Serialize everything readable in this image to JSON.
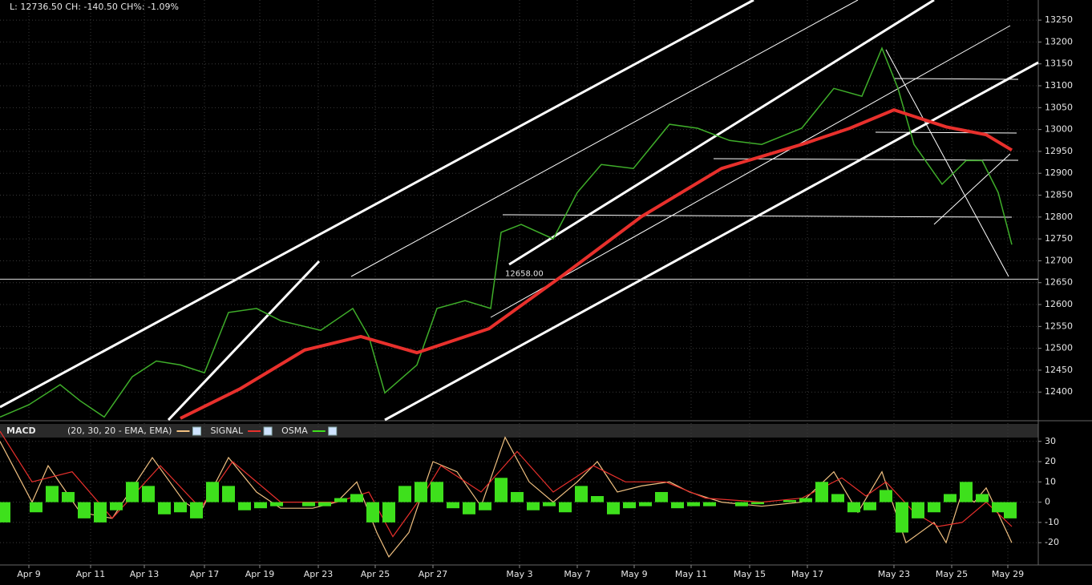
{
  "chart_data": [
    {
      "type": "line",
      "title": "L: 12736.50 CH: -140.50 CH%: -1.09%",
      "xlim": [
        0,
        129.5
      ],
      "ylim": [
        12340,
        13296
      ],
      "grid": true,
      "yticks": [
        12400,
        12450,
        12500,
        12550,
        12600,
        12650,
        12700,
        12750,
        12800,
        12850,
        12900,
        12950,
        13000,
        13050,
        13100,
        13150,
        13200,
        13250
      ],
      "series": [
        {
          "color": "#3fae2a",
          "x": [
            0,
            3.6,
            7.5,
            10,
            13,
            16.5,
            19.5,
            22.5,
            25.5,
            28.5,
            32,
            35,
            40,
            44,
            46,
            48,
            52,
            54.5,
            58,
            61.2,
            62.5,
            65,
            69,
            72,
            75,
            79,
            83.5,
            87,
            91,
            95,
            100,
            104,
            107.5,
            110,
            112,
            114,
            117.5,
            120.5,
            122.5,
            124.5,
            126.2
          ],
          "values": [
            12343,
            12371,
            12417,
            12380,
            12343,
            12435,
            12471,
            12462,
            12444,
            12582,
            12591,
            12563,
            12541,
            12591,
            12527,
            12398,
            12462,
            12591,
            12609,
            12591,
            12765,
            12783,
            12750,
            12856,
            12920,
            12911,
            13012,
            13003,
            12975,
            12966,
            13003,
            13094,
            13076,
            13186,
            13094,
            12966,
            12875,
            12929,
            12929,
            12856,
            12737
          ]
        },
        {
          "color": "#e8302c",
          "x": [
            22.5,
            30,
            38,
            45,
            52,
            61,
            70,
            80,
            90,
            100,
            106,
            111.5,
            118,
            123,
            126.2
          ],
          "values": [
            12340,
            12408,
            12496,
            12527,
            12490,
            12545,
            12664,
            12801,
            12911,
            12966,
            13003,
            13045,
            13006,
            12988,
            12953
          ]
        }
      ],
      "annotations": [
        {
          "text": "12658.00",
          "value": 12658
        }
      ]
    },
    {
      "type": "line",
      "title": "MACD",
      "xlim": [
        0,
        129.5
      ],
      "ylim": [
        -31,
        39
      ],
      "grid": true,
      "yticks": [
        -20,
        -10,
        0,
        10,
        20,
        30
      ],
      "xticks": [
        {
          "value": 3.6,
          "label": "Apr 9"
        },
        {
          "value": 11.3,
          "label": "Apr 11"
        },
        {
          "value": 18,
          "label": "Apr 13"
        },
        {
          "value": 25.5,
          "label": "Apr 17"
        },
        {
          "value": 32.4,
          "label": "Apr 19"
        },
        {
          "value": 39.7,
          "label": "Apr 23"
        },
        {
          "value": 46.8,
          "label": "Apr 25"
        },
        {
          "value": 54,
          "label": "Apr 27"
        },
        {
          "value": 64.8,
          "label": "May 3"
        },
        {
          "value": 72,
          "label": "May 7"
        },
        {
          "value": 79.1,
          "label": "May 9"
        },
        {
          "value": 86.2,
          "label": "May 11"
        },
        {
          "value": 93.5,
          "label": "May 15"
        },
        {
          "value": 100.7,
          "label": "May 17"
        },
        {
          "value": 111.5,
          "label": "May 23"
        },
        {
          "value": 118.7,
          "label": "May 25"
        },
        {
          "value": 125.7,
          "label": "May 29"
        }
      ],
      "series": [
        {
          "name": "(20, 30, 20 - EMA, EMA)",
          "color": "#f0c080",
          "x": [
            0,
            2,
            4,
            6,
            10,
            14,
            19,
            23,
            25,
            28.5,
            32,
            35,
            39,
            42,
            44.5,
            47,
            48.5,
            51,
            54,
            57,
            60,
            63,
            66,
            69,
            72,
            74.5,
            77,
            80,
            83.5,
            86,
            90,
            95,
            100,
            104,
            107,
            110,
            113,
            116.5,
            118,
            120,
            121.5,
            123,
            126.2
          ],
          "values": [
            30,
            15,
            0,
            18,
            -5,
            -8,
            22,
            0,
            -5,
            22,
            5,
            -3,
            -3,
            0,
            10,
            -15,
            -27,
            -15,
            20,
            15,
            -2,
            32,
            10,
            0,
            10,
            20,
            5,
            8,
            10,
            5,
            0,
            -2,
            0,
            15,
            -5,
            15,
            -20,
            -10,
            -20,
            5,
            0,
            7,
            -20
          ]
        },
        {
          "name": "SIGNAL",
          "color": "#e8302c",
          "x": [
            0,
            4,
            9,
            14,
            20,
            25,
            29,
            35,
            42,
            46,
            49,
            53,
            55,
            60,
            64.5,
            69,
            74,
            78,
            83,
            88,
            95,
            100,
            105,
            108,
            110.5,
            114,
            117,
            120,
            123,
            126.2
          ],
          "values": [
            35,
            10,
            15,
            -8,
            18,
            -3,
            20,
            0,
            0,
            5,
            -17,
            5,
            18,
            5,
            25,
            5,
            18,
            10,
            10,
            2,
            0,
            2,
            12,
            3,
            10,
            -5,
            -12,
            -10,
            0,
            -12
          ]
        },
        {
          "name": "OSMA",
          "color": "#3ee01c",
          "type": "bar",
          "x": [
            0.5,
            2.5,
            4.5,
            6.5,
            8.5,
            10.5,
            12.5,
            14.5,
            16.5,
            18.5,
            20.5,
            22.5,
            24.5,
            26.5,
            28.5,
            30.5,
            32.5,
            34.5,
            36.5,
            38.5,
            40.5,
            42.5,
            44.5,
            46.5,
            48.5,
            50.5,
            52.5,
            54.5,
            56.5,
            58.5,
            60.5,
            62.5,
            64.5,
            66.5,
            68.5,
            70.5,
            72.5,
            74.5,
            76.5,
            78.5,
            80.5,
            82.5,
            84.5,
            86.5,
            88.5,
            90.5,
            92.5,
            94.5,
            96.5,
            98.5,
            100.5,
            102.5,
            104.5,
            106.5,
            108.5,
            110.5,
            112.5,
            114.5,
            116.5,
            118.5,
            120.5,
            122.5,
            124.5,
            126
          ],
          "values": [
            -10,
            0,
            -5,
            8,
            5,
            -8,
            -10,
            -4,
            10,
            8,
            -6,
            -5,
            -8,
            10,
            8,
            -4,
            -3,
            -2,
            0,
            -2,
            -2,
            2,
            4,
            -10,
            -10,
            8,
            10,
            10,
            -3,
            -6,
            -4,
            12,
            5,
            -4,
            -2,
            -5,
            8,
            3,
            -6,
            -3,
            -2,
            5,
            -3,
            -2,
            -2,
            0,
            -2,
            -1,
            0,
            1,
            2,
            10,
            4,
            -5,
            -4,
            6,
            -15,
            -8,
            -5,
            4,
            10,
            4,
            -5,
            -8
          ]
        }
      ]
    }
  ]
}
